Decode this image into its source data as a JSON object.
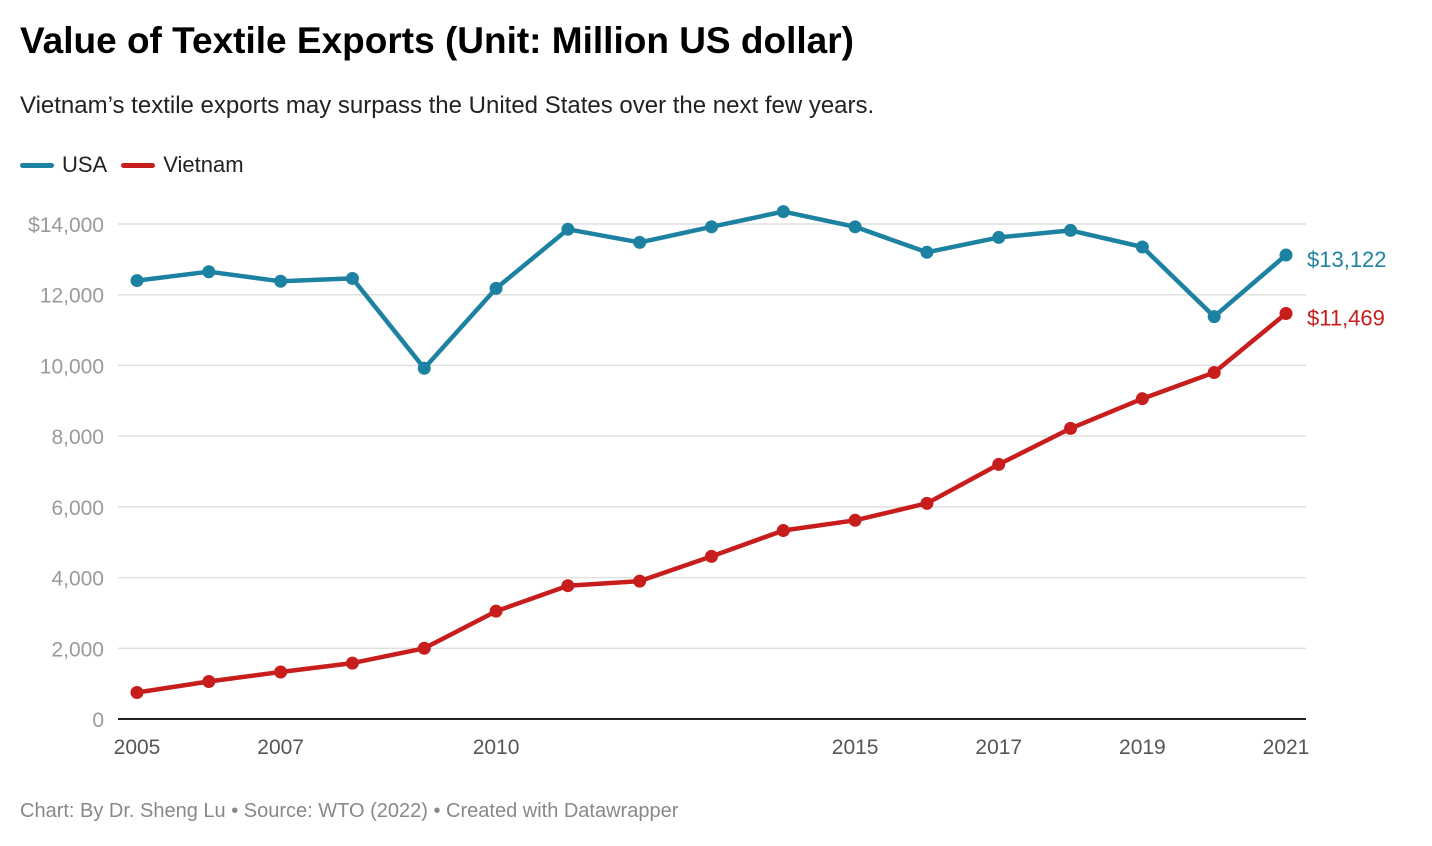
{
  "title": "Value of Textile Exports (Unit: Million US dollar)",
  "subtitle": "Vietnam’s textile exports may surpass the United States over the next few years.",
  "footer": "Chart: By Dr. Sheng Lu • Source: WTO (2022) • Created with Datawrapper",
  "chart_data": {
    "type": "line",
    "x": [
      2005,
      2006,
      2007,
      2008,
      2009,
      2010,
      2011,
      2012,
      2013,
      2014,
      2015,
      2016,
      2017,
      2018,
      2019,
      2020,
      2021
    ],
    "x_tick_labels": [
      "2005",
      "2007",
      "2010",
      "2015",
      "2017",
      "2019",
      "2021"
    ],
    "x_tick_values": [
      2005,
      2007,
      2010,
      2015,
      2017,
      2019,
      2021
    ],
    "y_tick_labels": [
      "0",
      "2,000",
      "4,000",
      "6,000",
      "8,000",
      "10,000",
      "12,000",
      "$14,000"
    ],
    "y_tick_values": [
      0,
      2000,
      4000,
      6000,
      8000,
      10000,
      12000,
      14000
    ],
    "ylim": [
      0,
      14000
    ],
    "grid": true,
    "legend_position": "top-left",
    "series": [
      {
        "name": "USA",
        "color": "#1d81a2",
        "values": [
          12400,
          12650,
          12380,
          12460,
          9920,
          12180,
          13850,
          13480,
          13920,
          14350,
          13920,
          13200,
          13620,
          13820,
          13350,
          11380,
          13122
        ],
        "end_label": "$13,122"
      },
      {
        "name": "Vietnam",
        "color": "#c71e1d",
        "values": [
          750,
          1060,
          1330,
          1580,
          2000,
          3050,
          3770,
          3900,
          4600,
          5330,
          5620,
          6100,
          7200,
          8220,
          9060,
          9800,
          11469
        ],
        "end_label": "$11,469"
      }
    ]
  }
}
